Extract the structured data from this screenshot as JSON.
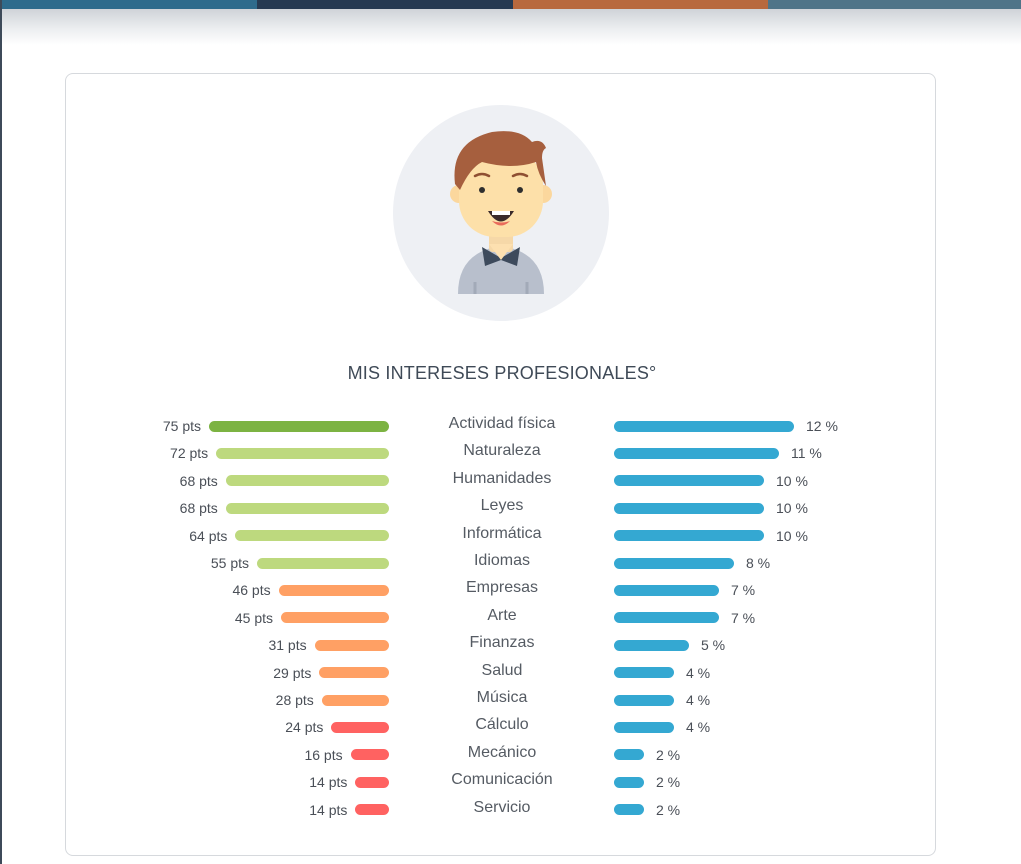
{
  "header": {
    "stripe_colors": [
      "#2e6b8c",
      "#263a52",
      "#b8693e",
      "#4f7488"
    ]
  },
  "title": "MIS INTERESES PROFESIONALES°",
  "avatar": {
    "icon": "boy-avatar-icon"
  },
  "colors": {
    "pct_bar": "#34a8d2",
    "pts_top": "#7cb342",
    "pts_high": "#bdd97e",
    "pts_mid": "#ffa064",
    "pts_low": "#ff6261"
  },
  "chart_data": {
    "type": "bar",
    "categories": [
      "Actividad física",
      "Naturaleza",
      "Humanidades",
      "Leyes",
      "Informática",
      "Idiomas",
      "Empresas",
      "Arte",
      "Finanzas",
      "Salud",
      "Música",
      "Cálculo",
      "Mecánico",
      "Comunicación",
      "Servicio"
    ],
    "series": [
      {
        "values": [
          75,
          72,
          68,
          68,
          64,
          55,
          46,
          45,
          31,
          29,
          28,
          24,
          16,
          14,
          14
        ],
        "unit": "pts",
        "labels": [
          "75 pts",
          "72 pts",
          "68 pts",
          "68 pts",
          "64 pts",
          "55 pts",
          "46 pts",
          "45 pts",
          "31 pts",
          "29 pts",
          "28 pts",
          "24 pts",
          "16 pts",
          "14 pts",
          "14 pts"
        ],
        "colors": [
          "#7cb342",
          "#bdd97e",
          "#bdd97e",
          "#bdd97e",
          "#bdd97e",
          "#bdd97e",
          "#ffa064",
          "#ffa064",
          "#ffa064",
          "#ffa064",
          "#ffa064",
          "#ff6261",
          "#ff6261",
          "#ff6261",
          "#ff6261"
        ]
      },
      {
        "values": [
          12,
          11,
          10,
          10,
          10,
          8,
          7,
          7,
          5,
          4,
          4,
          4,
          2,
          2,
          2
        ],
        "unit": "%",
        "labels": [
          "12 %",
          "11 %",
          "10 %",
          "10 %",
          "10 %",
          "8 %",
          "7 %",
          "7 %",
          "5 %",
          "4 %",
          "4 %",
          "4 %",
          "2 %",
          "2 %",
          "2 %"
        ]
      }
    ],
    "title": "MIS INTERESES PROFESIONALES°"
  }
}
